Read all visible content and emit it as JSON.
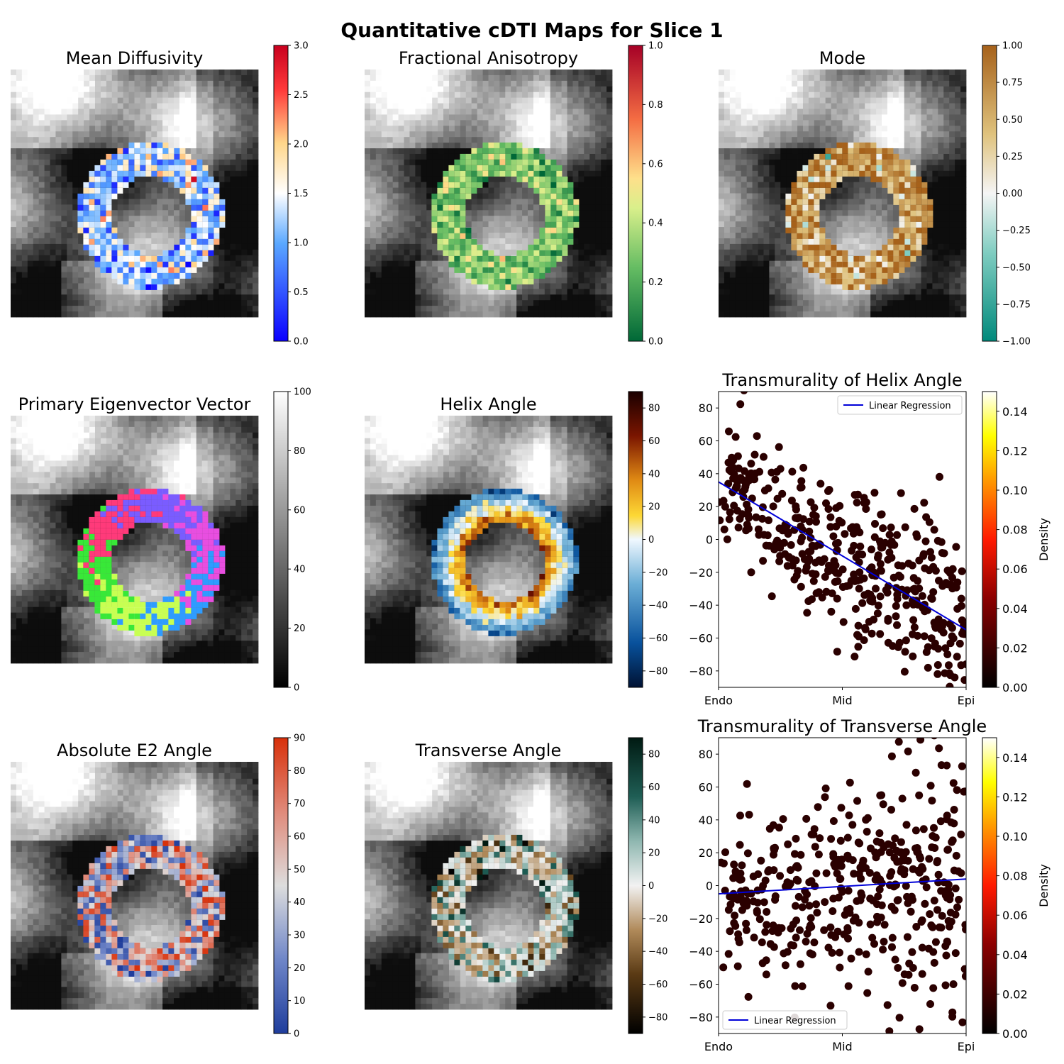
{
  "figure": {
    "title": "Quantitative cDTI Maps for Slice 1"
  },
  "chart_data": [
    {
      "type": "heatmap",
      "title": "Mean Diffusivity",
      "colormap": "bwr-like",
      "colorbar": {
        "min": 0,
        "max": 3,
        "ticks": [
          "0.0",
          "0.5",
          "1.0",
          "1.5",
          "2.0",
          "2.5",
          "3.0"
        ]
      },
      "ring_values": {
        "typical": 1.2,
        "range": [
          0.4,
          3.0
        ]
      }
    },
    {
      "type": "heatmap",
      "title": "Fractional Anisotropy",
      "colormap": "RdYlGn_r",
      "colorbar": {
        "min": 0,
        "max": 1,
        "ticks": [
          "0.0",
          "0.2",
          "0.4",
          "0.6",
          "0.8",
          "1.0"
        ]
      },
      "ring_values": {
        "typical": 0.3,
        "range": [
          0.15,
          0.85
        ]
      }
    },
    {
      "type": "heatmap",
      "title": "Mode",
      "colormap": "BrBG_r",
      "colorbar": {
        "min": -1,
        "max": 1,
        "ticks": [
          "−1.00",
          "−0.75",
          "−0.50",
          "−0.25",
          "0.00",
          "0.25",
          "0.50",
          "0.75",
          "1.00"
        ]
      },
      "ring_values": {
        "typical": 0.6,
        "range": [
          -1,
          1
        ]
      }
    },
    {
      "type": "heatmap",
      "title": "Primary Eigenvector Vector",
      "colormap": "gray",
      "colorbar": {
        "min": 0,
        "max": 100,
        "ticks": [
          "0",
          "20",
          "40",
          "60",
          "80",
          "100"
        ]
      },
      "ring_values": {
        "encoding": "direction-rgb",
        "colors": [
          "#38e838",
          "#ff3a7a",
          "#7a5cff",
          "#e84ee0",
          "#2e9cff",
          "#c8ff52"
        ]
      }
    },
    {
      "type": "heatmap",
      "title": "Helix Angle",
      "colormap": "helix",
      "colorbar": {
        "min": -90,
        "max": 90,
        "ticks": [
          "−80",
          "−60",
          "−40",
          "−20",
          "0",
          "20",
          "40",
          "60",
          "80"
        ]
      },
      "ring_values": {
        "endo": 50,
        "epi": -50
      }
    },
    {
      "type": "scatter",
      "title": "Transmurality of Helix Angle",
      "x_ticks": [
        "Endo",
        "Mid",
        "Epi"
      ],
      "xlim": [
        0,
        1
      ],
      "ylim": [
        -90,
        90
      ],
      "y_ticks": [
        "−80",
        "−60",
        "−40",
        "−20",
        "0",
        "20",
        "40",
        "60",
        "80"
      ],
      "legend": {
        "label": "Linear Regression",
        "placement": "upper-right"
      },
      "regression": {
        "x": [
          0,
          1
        ],
        "y": [
          35,
          -55
        ]
      },
      "colorbar": {
        "label": "Density",
        "min": 0,
        "max": 0.15,
        "ticks": [
          "0.00",
          "0.02",
          "0.04",
          "0.06",
          "0.08",
          "0.10",
          "0.12",
          "0.14"
        ]
      },
      "sample": {
        "n": 430,
        "seed": 11,
        "trend": [
          35,
          -55
        ],
        "noise": 24
      }
    },
    {
      "type": "heatmap",
      "title": "Absolute E2 Angle",
      "colormap": "coolwarm",
      "colorbar": {
        "min": 0,
        "max": 90,
        "ticks": [
          "0",
          "10",
          "20",
          "30",
          "40",
          "50",
          "60",
          "70",
          "80",
          "90"
        ]
      },
      "ring_values": {
        "range": [
          0,
          90
        ]
      }
    },
    {
      "type": "heatmap",
      "title": "Transverse Angle",
      "colormap": "BrBG-dark",
      "colorbar": {
        "min": -90,
        "max": 90,
        "ticks": [
          "−80",
          "−60",
          "−40",
          "−20",
          "0",
          "20",
          "40",
          "60",
          "80"
        ]
      },
      "ring_values": {
        "typical": 0,
        "range": [
          -90,
          90
        ]
      }
    },
    {
      "type": "scatter",
      "title": "Transmurality of Transverse Angle",
      "x_ticks": [
        "Endo",
        "Mid",
        "Epi"
      ],
      "xlim": [
        0,
        1
      ],
      "ylim": [
        -90,
        90
      ],
      "y_ticks": [
        "−80",
        "−60",
        "−40",
        "−20",
        "0",
        "20",
        "40",
        "60",
        "80"
      ],
      "legend": {
        "label": "Linear Regression",
        "placement": "lower-left"
      },
      "regression": {
        "x": [
          0,
          1
        ],
        "y": [
          -5,
          4
        ]
      },
      "colorbar": {
        "label": "Density",
        "min": 0,
        "max": 0.15,
        "ticks": [
          "0.00",
          "0.02",
          "0.04",
          "0.06",
          "0.08",
          "0.10",
          "0.12",
          "0.14"
        ]
      },
      "sample": {
        "n": 430,
        "seed": 23,
        "trend": [
          -5,
          4
        ],
        "noise": 30
      }
    }
  ]
}
